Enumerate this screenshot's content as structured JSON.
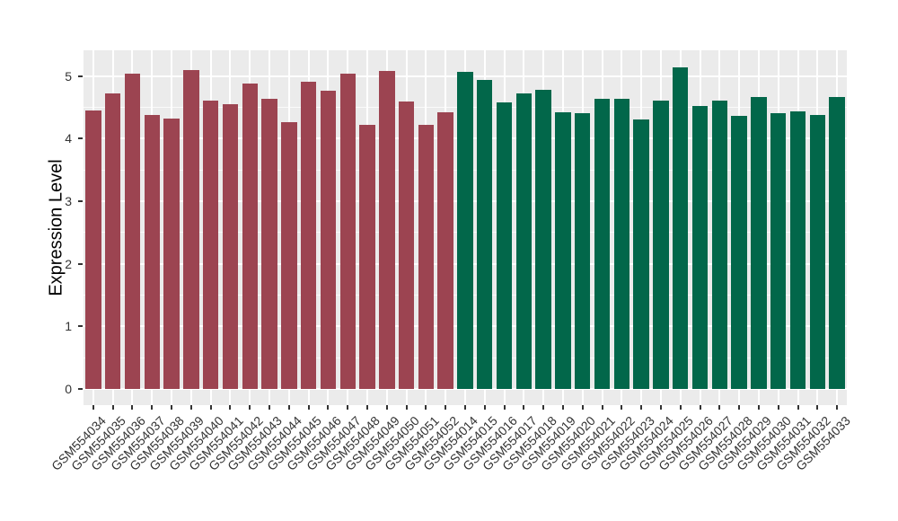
{
  "figure": {
    "background": "#FFFFFF",
    "panel_background": "#EBEBEB",
    "gridline_color": "#FFFFFF",
    "axis_text_color": "#333333",
    "group_colors": {
      "left_group": "#9C4451",
      "right_group": "#02674A"
    }
  },
  "chart_data": {
    "type": "bar",
    "title": "",
    "xlabel": "",
    "ylabel": "Expression Level",
    "ylim": [
      0,
      5.4
    ],
    "yticks": [
      0,
      1,
      2,
      3,
      4,
      5
    ],
    "grid": "on",
    "legend": "none",
    "bars": [
      {
        "label": "GSM554034",
        "value": 4.45,
        "color": "#9C4451"
      },
      {
        "label": "GSM554035",
        "value": 4.72,
        "color": "#9C4451"
      },
      {
        "label": "GSM554036",
        "value": 5.03,
        "color": "#9C4451"
      },
      {
        "label": "GSM554037",
        "value": 4.37,
        "color": "#9C4451"
      },
      {
        "label": "GSM554038",
        "value": 4.32,
        "color": "#9C4451"
      },
      {
        "label": "GSM554039",
        "value": 5.1,
        "color": "#9C4451"
      },
      {
        "label": "GSM554040",
        "value": 4.61,
        "color": "#9C4451"
      },
      {
        "label": "GSM554041",
        "value": 4.55,
        "color": "#9C4451"
      },
      {
        "label": "GSM554042",
        "value": 4.88,
        "color": "#9C4451"
      },
      {
        "label": "GSM554043",
        "value": 4.63,
        "color": "#9C4451"
      },
      {
        "label": "GSM554044",
        "value": 4.26,
        "color": "#9C4451"
      },
      {
        "label": "GSM554045",
        "value": 4.91,
        "color": "#9C4451"
      },
      {
        "label": "GSM554046",
        "value": 4.76,
        "color": "#9C4451"
      },
      {
        "label": "GSM554047",
        "value": 5.04,
        "color": "#9C4451"
      },
      {
        "label": "GSM554048",
        "value": 4.22,
        "color": "#9C4451"
      },
      {
        "label": "GSM554049",
        "value": 5.08,
        "color": "#9C4451"
      },
      {
        "label": "GSM554050",
        "value": 4.59,
        "color": "#9C4451"
      },
      {
        "label": "GSM554051",
        "value": 4.22,
        "color": "#9C4451"
      },
      {
        "label": "GSM554052",
        "value": 4.42,
        "color": "#9C4451"
      },
      {
        "label": "GSM554014",
        "value": 5.06,
        "color": "#02674A"
      },
      {
        "label": "GSM554015",
        "value": 4.93,
        "color": "#02674A"
      },
      {
        "label": "GSM554016",
        "value": 4.58,
        "color": "#02674A"
      },
      {
        "label": "GSM554017",
        "value": 4.72,
        "color": "#02674A"
      },
      {
        "label": "GSM554018",
        "value": 4.78,
        "color": "#02674A"
      },
      {
        "label": "GSM554019",
        "value": 4.42,
        "color": "#02674A"
      },
      {
        "label": "GSM554020",
        "value": 4.41,
        "color": "#02674A"
      },
      {
        "label": "GSM554021",
        "value": 4.64,
        "color": "#02674A"
      },
      {
        "label": "GSM554022",
        "value": 4.63,
        "color": "#02674A"
      },
      {
        "label": "GSM554023",
        "value": 4.31,
        "color": "#02674A"
      },
      {
        "label": "GSM554024",
        "value": 4.61,
        "color": "#02674A"
      },
      {
        "label": "GSM554025",
        "value": 5.14,
        "color": "#02674A"
      },
      {
        "label": "GSM554026",
        "value": 4.52,
        "color": "#02674A"
      },
      {
        "label": "GSM554027",
        "value": 4.6,
        "color": "#02674A"
      },
      {
        "label": "GSM554028",
        "value": 4.36,
        "color": "#02674A"
      },
      {
        "label": "GSM554029",
        "value": 4.67,
        "color": "#02674A"
      },
      {
        "label": "GSM554030",
        "value": 4.41,
        "color": "#02674A"
      },
      {
        "label": "GSM554031",
        "value": 4.44,
        "color": "#02674A"
      },
      {
        "label": "GSM554032",
        "value": 4.38,
        "color": "#02674A"
      },
      {
        "label": "GSM554033",
        "value": 4.67,
        "color": "#02674A"
      }
    ]
  }
}
